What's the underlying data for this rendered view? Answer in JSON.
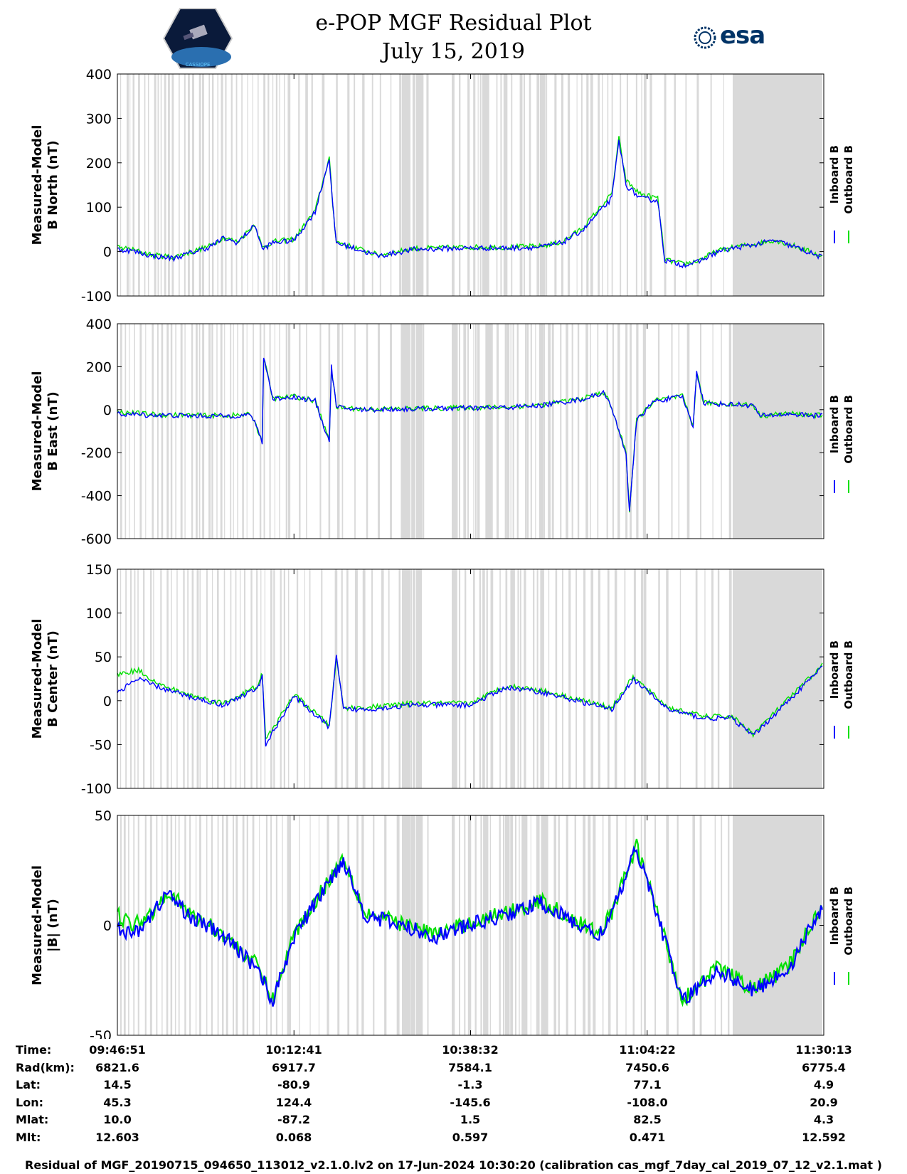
{
  "header": {
    "title_line1": "e-POP MGF Residual Plot",
    "title_line2": "July 15, 2019",
    "logo_left_text": "CASSIOPE",
    "logo_right_text": "esa"
  },
  "colors": {
    "inboard": "#0000ff",
    "outboard": "#00e000",
    "gap_shading": "#d9d9d9"
  },
  "chart_data": [
    {
      "type": "line",
      "panel": "b-north",
      "ylabel_line1": "Measured-Model",
      "ylabel_line2": "B North (nT)",
      "ylim": [
        -100,
        400
      ],
      "yticks": [
        400,
        300,
        200,
        100,
        0,
        -100
      ],
      "legend": [
        "Inboard B",
        "Outboard B"
      ],
      "x": [
        0,
        0.02,
        0.05,
        0.08,
        0.1,
        0.13,
        0.15,
        0.17,
        0.195,
        0.205,
        0.22,
        0.25,
        0.28,
        0.3,
        0.305,
        0.31,
        0.33,
        0.37,
        0.42,
        0.5,
        0.55,
        0.6,
        0.63,
        0.66,
        0.7,
        0.71,
        0.72,
        0.74,
        0.765,
        0.775,
        0.8,
        0.82,
        0.85,
        0.88,
        0.9,
        0.93,
        0.96,
        1.0
      ],
      "series": [
        {
          "name": "Inboard B",
          "values": [
            5,
            2,
            -10,
            -15,
            -5,
            10,
            30,
            20,
            60,
            5,
            20,
            25,
            90,
            210,
            100,
            20,
            10,
            -10,
            5,
            8,
            8,
            10,
            20,
            50,
            120,
            250,
            150,
            120,
            115,
            -20,
            -30,
            -25,
            0,
            10,
            15,
            25,
            10,
            -15
          ]
        },
        {
          "name": "Outboard B",
          "values": [
            10,
            5,
            -8,
            -12,
            -3,
            12,
            32,
            22,
            62,
            8,
            22,
            28,
            92,
            212,
            102,
            22,
            12,
            -8,
            7,
            10,
            10,
            12,
            22,
            55,
            130,
            255,
            160,
            130,
            120,
            -18,
            -28,
            -22,
            2,
            12,
            16,
            26,
            12,
            -12
          ]
        }
      ]
    },
    {
      "type": "line",
      "panel": "b-east",
      "ylabel_line1": "Measured-Model",
      "ylabel_line2": "B East (nT)",
      "ylim": [
        -600,
        400
      ],
      "yticks": [
        400,
        200,
        0,
        -200,
        -400,
        -600
      ],
      "legend": [
        "Inboard B",
        "Outboard B"
      ],
      "x": [
        0,
        0.05,
        0.1,
        0.15,
        0.19,
        0.205,
        0.207,
        0.22,
        0.25,
        0.28,
        0.3,
        0.303,
        0.31,
        0.35,
        0.45,
        0.55,
        0.6,
        0.66,
        0.69,
        0.7,
        0.72,
        0.725,
        0.735,
        0.76,
        0.8,
        0.815,
        0.82,
        0.83,
        0.9,
        0.91,
        0.95,
        1.0
      ],
      "series": [
        {
          "name": "Inboard B",
          "values": [
            -20,
            -25,
            -28,
            -30,
            -25,
            -150,
            250,
            50,
            60,
            40,
            -150,
            200,
            10,
            0,
            5,
            10,
            20,
            50,
            80,
            0,
            -200,
            -480,
            -50,
            40,
            60,
            -80,
            180,
            30,
            20,
            -30,
            -20,
            -30
          ]
        },
        {
          "name": "Outboard B",
          "values": [
            -10,
            -22,
            -26,
            -28,
            -23,
            -145,
            245,
            52,
            62,
            42,
            -145,
            195,
            12,
            2,
            7,
            12,
            22,
            52,
            82,
            2,
            -195,
            -470,
            -48,
            42,
            62,
            -78,
            175,
            32,
            22,
            -28,
            -18,
            -28
          ]
        }
      ]
    },
    {
      "type": "line",
      "panel": "b-center",
      "ylabel_line1": "Measured-Model",
      "ylabel_line2": "B Center (nT)",
      "ylim": [
        -100,
        150
      ],
      "yticks": [
        150,
        100,
        50,
        0,
        -50,
        -100
      ],
      "legend": [
        "Inboard B",
        "Outboard B"
      ],
      "x": [
        0,
        0.03,
        0.06,
        0.1,
        0.15,
        0.2,
        0.205,
        0.21,
        0.25,
        0.3,
        0.31,
        0.32,
        0.35,
        0.42,
        0.5,
        0.55,
        0.6,
        0.65,
        0.7,
        0.73,
        0.78,
        0.83,
        0.87,
        0.9,
        0.95,
        1.0
      ],
      "series": [
        {
          "name": "Inboard B",
          "values": [
            10,
            25,
            15,
            5,
            -5,
            15,
            30,
            -50,
            5,
            -30,
            50,
            -10,
            -10,
            -5,
            -5,
            15,
            10,
            0,
            -10,
            25,
            -10,
            -20,
            -20,
            -40,
            0,
            40
          ]
        },
        {
          "name": "Outboard B",
          "values": [
            30,
            35,
            18,
            7,
            -3,
            17,
            32,
            -45,
            7,
            -28,
            48,
            -8,
            -8,
            -3,
            -3,
            17,
            12,
            2,
            -8,
            27,
            -8,
            -18,
            -18,
            -38,
            2,
            42
          ]
        }
      ]
    },
    {
      "type": "line",
      "panel": "b-total",
      "ylabel_line1": "Measured-Model",
      "ylabel_line2": "|B| (nT)",
      "ylim": [
        -50,
        50
      ],
      "yticks": [
        50,
        0,
        -50
      ],
      "legend": [
        "Inboard B",
        "Outboard B"
      ],
      "x": [
        0,
        0.02,
        0.05,
        0.07,
        0.1,
        0.15,
        0.2,
        0.22,
        0.25,
        0.3,
        0.32,
        0.35,
        0.45,
        0.55,
        0.6,
        0.68,
        0.7,
        0.735,
        0.76,
        0.8,
        0.85,
        0.9,
        0.95,
        1.0
      ],
      "series": [
        {
          "name": "Inboard B",
          "values": [
            0,
            -5,
            5,
            15,
            5,
            -5,
            -20,
            -35,
            -5,
            20,
            30,
            5,
            -5,
            5,
            10,
            -5,
            5,
            35,
            10,
            -35,
            -20,
            -30,
            -20,
            10
          ]
        },
        {
          "name": "Outboard B",
          "values": [
            5,
            0,
            6,
            16,
            6,
            -4,
            -19,
            -34,
            -4,
            21,
            31,
            6,
            -4,
            6,
            11,
            -4,
            6,
            36,
            11,
            -34,
            -19,
            -29,
            -19,
            11
          ]
        }
      ]
    }
  ],
  "time_table": {
    "labels": [
      "Time:",
      "Rad(km):",
      "Lat:",
      "Lon:",
      "Mlat:",
      "Mlt:"
    ],
    "columns": [
      [
        "09:46:51",
        "6821.6",
        "14.5",
        "45.3",
        "10.0",
        "12.603"
      ],
      [
        "10:12:41",
        "6917.7",
        "-80.9",
        "124.4",
        "-87.2",
        "0.068"
      ],
      [
        "10:38:32",
        "7584.1",
        "-1.3",
        "-145.6",
        "1.5",
        "0.597"
      ],
      [
        "11:04:22",
        "7450.6",
        "77.1",
        "-108.0",
        "82.5",
        "0.471"
      ],
      [
        "11:30:13",
        "6775.4",
        "4.9",
        "20.9",
        "4.3",
        "12.592"
      ]
    ]
  },
  "footer": "Residual of MGF_20190715_094650_113012_v2.1.0.lv2 on 17-Jun-2024 10:30:20 (calibration cas_mgf_7day_cal_2019_07_12_v2.1.mat )"
}
